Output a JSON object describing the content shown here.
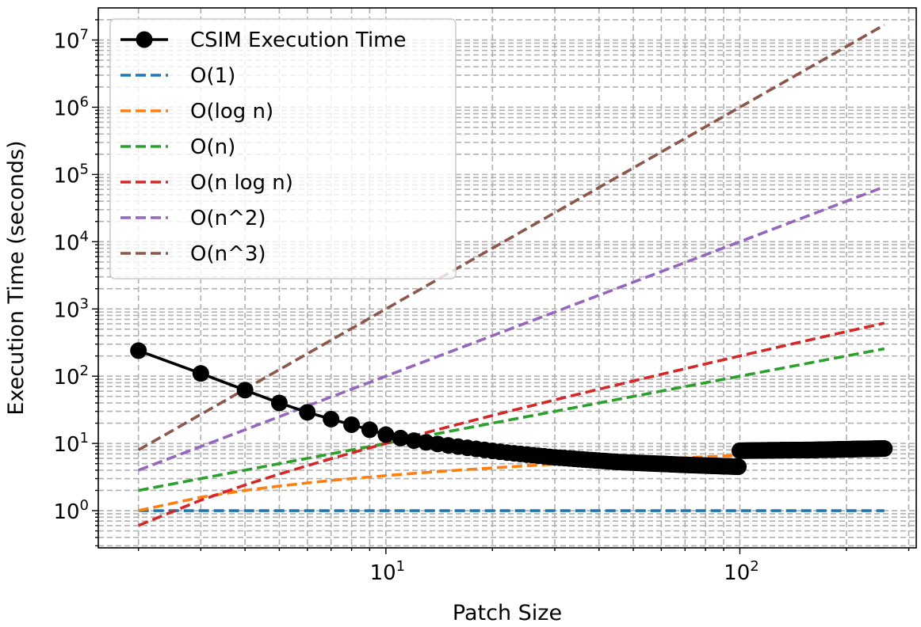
{
  "chart_data": {
    "type": "line",
    "title": "",
    "xlabel": "Patch Size",
    "ylabel": "Execution Time (seconds)",
    "xscale": "log",
    "yscale": "log",
    "xlim": [
      1.54,
      315
    ],
    "ylim": [
      0.28,
      30000000
    ],
    "grid": true,
    "legend_position": "top-left",
    "x_ticks": [
      {
        "value": 10,
        "base": "10",
        "exp": "1"
      },
      {
        "value": 100,
        "base": "10",
        "exp": "2"
      }
    ],
    "y_ticks": [
      {
        "value": 1,
        "base": "10",
        "exp": "0"
      },
      {
        "value": 10,
        "base": "10",
        "exp": "1"
      },
      {
        "value": 100,
        "base": "10",
        "exp": "2"
      },
      {
        "value": 1000,
        "base": "10",
        "exp": "3"
      },
      {
        "value": 10000,
        "base": "10",
        "exp": "4"
      },
      {
        "value": 100000,
        "base": "10",
        "exp": "5"
      },
      {
        "value": 1000000,
        "base": "10",
        "exp": "6"
      },
      {
        "value": 10000000,
        "base": "10",
        "exp": "7"
      }
    ],
    "x_range": [
      2,
      256
    ],
    "series": [
      {
        "name": "CSIM Execution Time",
        "color": "#000000",
        "style": "solid-marker",
        "anchors": [
          [
            2,
            240
          ],
          [
            3,
            110
          ],
          [
            4,
            62
          ],
          [
            5,
            40
          ],
          [
            6,
            29
          ],
          [
            7,
            23
          ],
          [
            8,
            19
          ],
          [
            9,
            16
          ],
          [
            10,
            13.5
          ],
          [
            11,
            12
          ],
          [
            12,
            11
          ],
          [
            14,
            9.8
          ],
          [
            17,
            8.6
          ],
          [
            22,
            7.3
          ],
          [
            30,
            6.2
          ],
          [
            45,
            5.3
          ],
          [
            70,
            4.8
          ],
          [
            99,
            4.5
          ],
          [
            100,
            7.8
          ],
          [
            120,
            7.9
          ],
          [
            160,
            8.0
          ],
          [
            200,
            8.2
          ],
          [
            256,
            8.4
          ]
        ]
      },
      {
        "name": "O(1)",
        "color": "#1f77b4",
        "style": "dashed",
        "formula": "1"
      },
      {
        "name": "O(log n)",
        "color": "#ff7f0e",
        "style": "dashed",
        "formula": "logn"
      },
      {
        "name": "O(n)",
        "color": "#2ca02c",
        "style": "dashed",
        "formula": "n"
      },
      {
        "name": "O(n log n)",
        "color": "#d62728",
        "style": "dashed",
        "formula": "nlogn"
      },
      {
        "name": "O(n^2)",
        "color": "#9467bd",
        "style": "dashed",
        "formula": "n2"
      },
      {
        "name": "O(n^3)",
        "color": "#8c564b",
        "style": "dashed",
        "formula": "n3"
      }
    ]
  }
}
